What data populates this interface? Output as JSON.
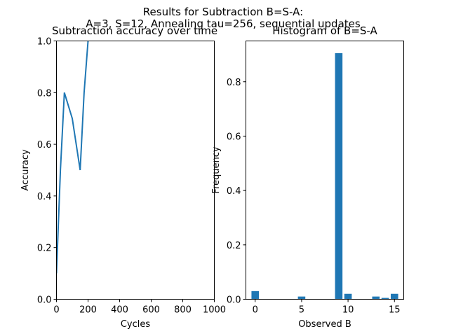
{
  "figure": {
    "suptitle_line1": "Results for Subtraction B=S-A:",
    "suptitle_line2": "A=3, S=12, Annealing tau=256, sequential updates"
  },
  "colors": {
    "series": "#1f77b4"
  },
  "chart_data": [
    {
      "type": "line",
      "title": "Subtraction accuracy over time",
      "xlabel": "Cycles",
      "ylabel": "Accuracy",
      "xlim": [
        0,
        1000
      ],
      "ylim": [
        0,
        1
      ],
      "xticks": [
        0,
        200,
        400,
        600,
        800,
        1000
      ],
      "xtick_labels": [
        "0",
        "200",
        "400",
        "600",
        "800",
        "1000"
      ],
      "yticks": [
        0,
        0.2,
        0.4,
        0.6,
        0.8,
        1.0
      ],
      "ytick_labels": [
        "0.0",
        "0.2",
        "0.4",
        "0.6",
        "0.8",
        "1.0"
      ],
      "grid": false,
      "series": [
        {
          "x": [
            0,
            25,
            50,
            100,
            150,
            175,
            200,
            225,
            250
          ],
          "y": [
            0.1,
            0.5,
            0.8,
            0.7,
            0.5,
            0.8,
            1.0,
            1.1,
            1.2
          ]
        }
      ]
    },
    {
      "type": "bar",
      "title": "Histogram of B=S-A",
      "xlabel": "Observed B",
      "ylabel": "Frequency",
      "xlim": [
        -1.0,
        16.0
      ],
      "ylim": [
        0,
        0.95
      ],
      "xticks": [
        0,
        5,
        10,
        15
      ],
      "xtick_labels": [
        "0",
        "5",
        "10",
        "15"
      ],
      "yticks": [
        0,
        0.2,
        0.4,
        0.6,
        0.8
      ],
      "ytick_labels": [
        "0.0",
        "0.2",
        "0.4",
        "0.6",
        "0.8"
      ],
      "grid": false,
      "x": [
        0,
        5,
        9,
        10,
        13,
        14,
        15
      ],
      "values": [
        0.03,
        0.01,
        0.905,
        0.02,
        0.01,
        0.005,
        0.02
      ]
    }
  ]
}
